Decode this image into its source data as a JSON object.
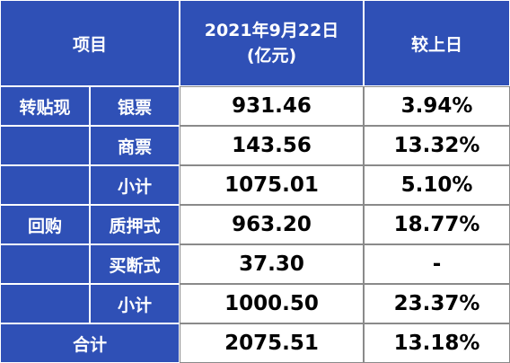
{
  "header": {
    "item": "项目",
    "date": "2021年9月22日",
    "unit": "(亿元)",
    "change": "较上日"
  },
  "rows": [
    {
      "group": "转贴现",
      "item": "银票",
      "value": "931.46",
      "change": "3.94%"
    },
    {
      "item": "商票",
      "value": "143.56",
      "change": "13.32%"
    },
    {
      "item": "小计",
      "value": "1075.01",
      "change": "5.10%"
    },
    {
      "group": "回购",
      "item": "质押式",
      "value": "963.20",
      "change": "18.77%"
    },
    {
      "item": "买断式",
      "value": "37.30",
      "change": "-"
    },
    {
      "item": "小计",
      "value": "1000.50",
      "change": "23.37%"
    }
  ],
  "total": {
    "label": "合计",
    "value": "2075.51",
    "change": "13.18%"
  }
}
